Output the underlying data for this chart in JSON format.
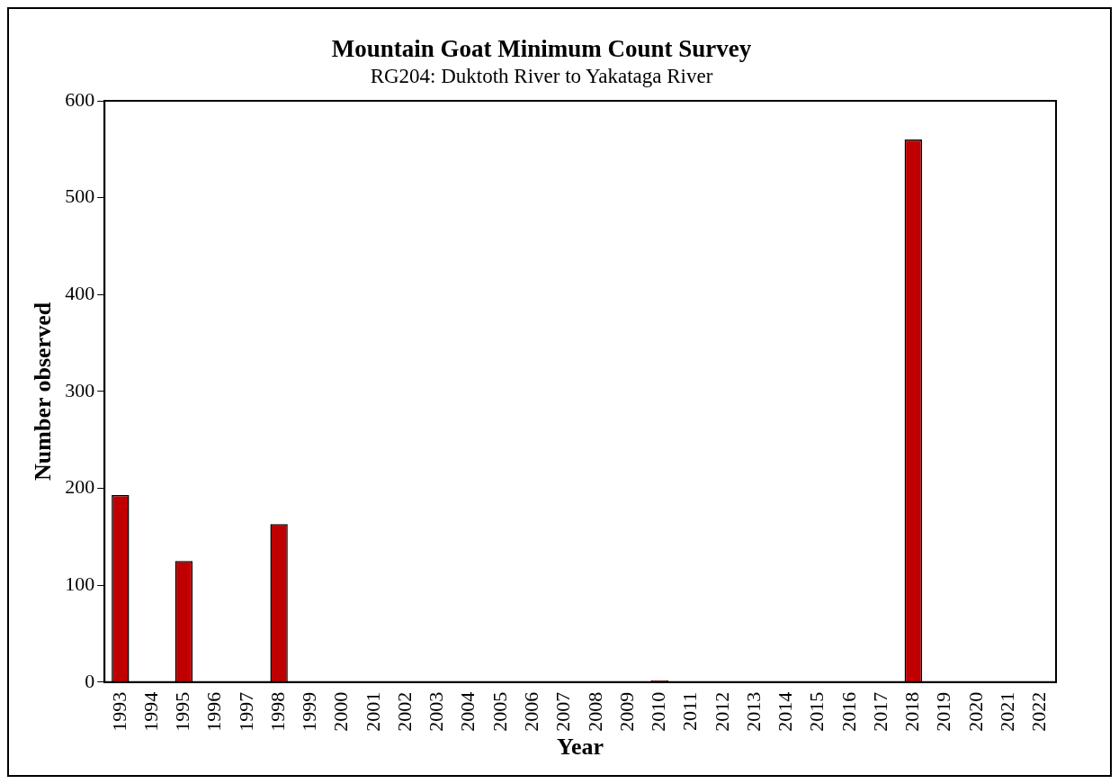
{
  "chart_data": {
    "type": "bar",
    "title": "Mountain Goat Minimum Count Survey",
    "subtitle": "RG204: Duktoth River to Yakataga River",
    "xlabel": "Year",
    "ylabel": "Number observed",
    "categories": [
      "1993",
      "1994",
      "1995",
      "1996",
      "1997",
      "1998",
      "1999",
      "2000",
      "2001",
      "2002",
      "2003",
      "2004",
      "2005",
      "2006",
      "2007",
      "2008",
      "2009",
      "2010",
      "2011",
      "2012",
      "2013",
      "2014",
      "2015",
      "2016",
      "2017",
      "2018",
      "2019",
      "2020",
      "2021",
      "2022"
    ],
    "values": [
      193,
      null,
      125,
      null,
      null,
      163,
      null,
      null,
      null,
      null,
      null,
      null,
      null,
      null,
      null,
      null,
      null,
      2,
      null,
      null,
      null,
      null,
      null,
      null,
      null,
      560,
      null,
      null,
      null,
      null
    ],
    "color": "#c00000",
    "ylim": [
      0,
      600
    ],
    "yticks": [
      0,
      100,
      200,
      300,
      400,
      500,
      600
    ],
    "grid": false,
    "legend": false
  }
}
